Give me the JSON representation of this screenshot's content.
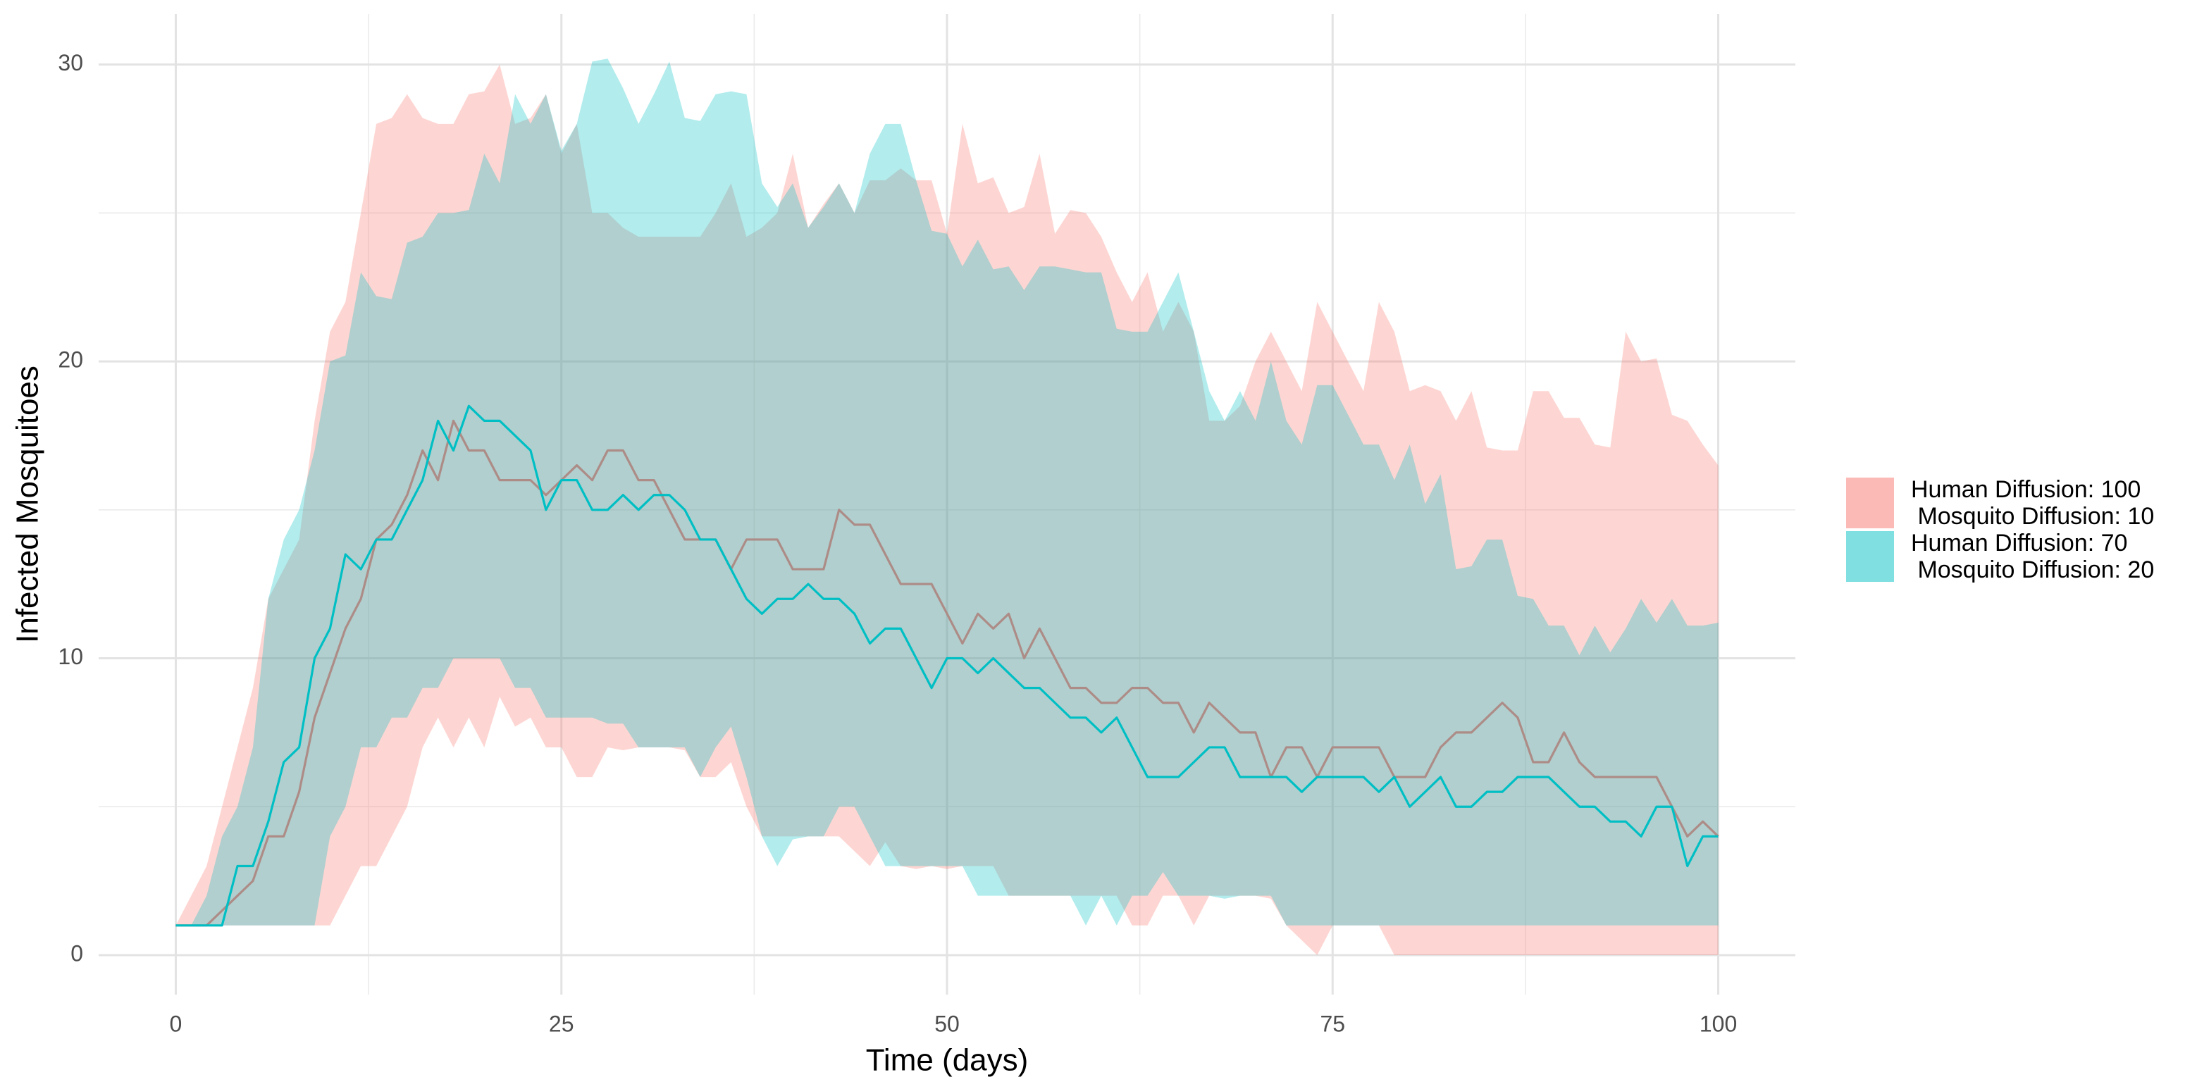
{
  "chart_data": {
    "type": "ribbon-line",
    "xlabel": "Time (days)",
    "ylabel": "Infected Mosquitoes",
    "xlim": [
      -5,
      105
    ],
    "ylim": [
      -1.33,
      31.7
    ],
    "xticks": [
      0,
      25,
      50,
      75,
      100
    ],
    "yticks": [
      0,
      10,
      20,
      30
    ],
    "grid": true,
    "legend": "right",
    "x": [
      0,
      1,
      2,
      3,
      4,
      5,
      6,
      7,
      8,
      9,
      10,
      11,
      12,
      13,
      14,
      15,
      16,
      17,
      18,
      19,
      20,
      21,
      22,
      23,
      24,
      25,
      26,
      27,
      28,
      29,
      30,
      31,
      32,
      33,
      34,
      35,
      36,
      37,
      38,
      39,
      40,
      41,
      42,
      43,
      44,
      45,
      46,
      47,
      48,
      49,
      50,
      51,
      52,
      53,
      54,
      55,
      56,
      57,
      58,
      59,
      60,
      61,
      62,
      63,
      64,
      65,
      66,
      67,
      68,
      69,
      70,
      71,
      72,
      73,
      74,
      75,
      76,
      77,
      78,
      79,
      80,
      81,
      82,
      83,
      84,
      85,
      86,
      87,
      88,
      89,
      90,
      91,
      92,
      93,
      94,
      95,
      96,
      97,
      98,
      99,
      100
    ],
    "series": [
      {
        "name": "Human Diffusion: 100\n Mosquito Diffusion: 10",
        "color": "#F8766D",
        "values": [
          1,
          1,
          1,
          1.5,
          2,
          2.5,
          4,
          4,
          5.5,
          8,
          9.5,
          11,
          12,
          14,
          14.5,
          15.5,
          17,
          16,
          18,
          17,
          17,
          16,
          16,
          16,
          15.5,
          16,
          16.5,
          16,
          17,
          17,
          16,
          16,
          15,
          14,
          14,
          14,
          13,
          14,
          14,
          14,
          13,
          13,
          13,
          15,
          14.5,
          14.5,
          13.5,
          12.5,
          12.5,
          12.5,
          11.5,
          10.5,
          11.5,
          11,
          11.5,
          10,
          11,
          10,
          9,
          9,
          8.5,
          8.5,
          9,
          9,
          8.5,
          8.5,
          7.5,
          8.5,
          8,
          7.5,
          7.5,
          6,
          7,
          7,
          6,
          7,
          7,
          7,
          7,
          6,
          6,
          6,
          7,
          7.5,
          7.5,
          8,
          8.5,
          8,
          6.5,
          6.5,
          7.5,
          6.5,
          6,
          6,
          6,
          6,
          6,
          5,
          4,
          4.5,
          4
        ],
        "upper": [
          1,
          2,
          3,
          5,
          7,
          9,
          12,
          13,
          14,
          18,
          21,
          22,
          25,
          28,
          28.2,
          29,
          28.2,
          28,
          28,
          29,
          29.1,
          30,
          28,
          28.2,
          29,
          27,
          28,
          25,
          25,
          24.5,
          24.2,
          24.2,
          24.2,
          24.2,
          24.2,
          25,
          26,
          24.2,
          24.5,
          25,
          27,
          24.5,
          25.3,
          26,
          25,
          26.1,
          26.1,
          26.5,
          26.1,
          26.1,
          24.3,
          28,
          26,
          26.2,
          25,
          25.2,
          27,
          24.3,
          25.1,
          25,
          24.2,
          23,
          22,
          23,
          21,
          22,
          21,
          18,
          18,
          18.5,
          20,
          21,
          20,
          19,
          22,
          21,
          20,
          19,
          22,
          21,
          19,
          19.2,
          19,
          18,
          19,
          17.1,
          17,
          17,
          19,
          19,
          18.1,
          18.1,
          17.2,
          17.1,
          21,
          20,
          20.1,
          18.2,
          18,
          17.2,
          16.5
        ],
        "lower": [
          1,
          1,
          1,
          1,
          1,
          1,
          1,
          1,
          1,
          1,
          1,
          2,
          3,
          3,
          4,
          5,
          7,
          8,
          7,
          8,
          7,
          8.7,
          7.7,
          8,
          7,
          7,
          6,
          6,
          7,
          6.9,
          7,
          7,
          7,
          6.9,
          6,
          6,
          6.5,
          5,
          4,
          4,
          4,
          4,
          4,
          4,
          3.5,
          3,
          3.8,
          3,
          2.9,
          3,
          2.9,
          3,
          3,
          3,
          2,
          2,
          2,
          2,
          2,
          2,
          2,
          2,
          1,
          1,
          2,
          2,
          1,
          2,
          2,
          2,
          2,
          1.9,
          1,
          0.5,
          0,
          1,
          1,
          1,
          1,
          0,
          0,
          0,
          0,
          0,
          0,
          0,
          0,
          0,
          0,
          0,
          0,
          0,
          0,
          0,
          0,
          0,
          0,
          0,
          0,
          0,
          0
        ]
      },
      {
        "name": "Human Diffusion: 70\n Mosquito Diffusion: 20",
        "color": "#00BFC4",
        "values": [
          1,
          1,
          1,
          1,
          3,
          3,
          4.5,
          6.5,
          7,
          10,
          11,
          13.5,
          13,
          14,
          14,
          15,
          16,
          18,
          17,
          18.5,
          18,
          18,
          17.5,
          17,
          15,
          16,
          16,
          15,
          15,
          15.5,
          15,
          15.5,
          15.5,
          15,
          14,
          14,
          13,
          12,
          11.5,
          12,
          12,
          12.5,
          12,
          12,
          11.5,
          10.5,
          11,
          11,
          10,
          9,
          10,
          10,
          9.5,
          10,
          9.5,
          9,
          9,
          8.5,
          8,
          8,
          7.5,
          8,
          7,
          6,
          6,
          6,
          6.5,
          7,
          7,
          6,
          6,
          6,
          6,
          5.5,
          6,
          6,
          6,
          6,
          5.5,
          6,
          5,
          5.5,
          6,
          5,
          5,
          5.5,
          5.5,
          6,
          6,
          6,
          5.5,
          5,
          5,
          4.5,
          4.5,
          4,
          5,
          5,
          3,
          4,
          4
        ],
        "upper": [
          1,
          1,
          2,
          4,
          5,
          7,
          12,
          14,
          15,
          17,
          20,
          20.2,
          23,
          22.2,
          22.1,
          24,
          24.2,
          25,
          25,
          25.1,
          27,
          26,
          29,
          28,
          29,
          27.1,
          28,
          30.1,
          30.2,
          29.2,
          28,
          29,
          30.1,
          28.2,
          28.1,
          29,
          29.1,
          29,
          26,
          25.2,
          26,
          24.5,
          25.2,
          26,
          25,
          27,
          28,
          28,
          26.1,
          24.4,
          24.3,
          23.2,
          24.1,
          23.1,
          23.2,
          22.4,
          23.2,
          23.2,
          23.1,
          23,
          23,
          21.1,
          21,
          21,
          22,
          23,
          21,
          19,
          18,
          19,
          18,
          20,
          18,
          17.2,
          19.2,
          19.2,
          18.2,
          17.2,
          17.2,
          16,
          17.2,
          15.2,
          16.2,
          13,
          13.1,
          14,
          14,
          12.1,
          12,
          11.1,
          11.1,
          10.1,
          11.1,
          10.2,
          11,
          12,
          11.2,
          12,
          11.1,
          11.1,
          11.2
        ],
        "lower": [
          1,
          1,
          1,
          1,
          1,
          1,
          1,
          1,
          1,
          1,
          4,
          5,
          7,
          7,
          8,
          8,
          9,
          9,
          10,
          10,
          10,
          10,
          9,
          9,
          8,
          8,
          8,
          8,
          7.8,
          7.8,
          7,
          7,
          7,
          7,
          6,
          7,
          7.7,
          6,
          4,
          3,
          3.9,
          4,
          4,
          5,
          5,
          4,
          3,
          3,
          3,
          3,
          3,
          3,
          2,
          2,
          2,
          2,
          2,
          2,
          2,
          1,
          2,
          1,
          2,
          2,
          2.8,
          2,
          2,
          2,
          1.9,
          2,
          2,
          2,
          1,
          1,
          1,
          1,
          1,
          1,
          1,
          1,
          1,
          1,
          1,
          1,
          1,
          1,
          1,
          1,
          1,
          1,
          1,
          1,
          1,
          1,
          1,
          1,
          1,
          1,
          1,
          1,
          1
        ]
      }
    ]
  }
}
